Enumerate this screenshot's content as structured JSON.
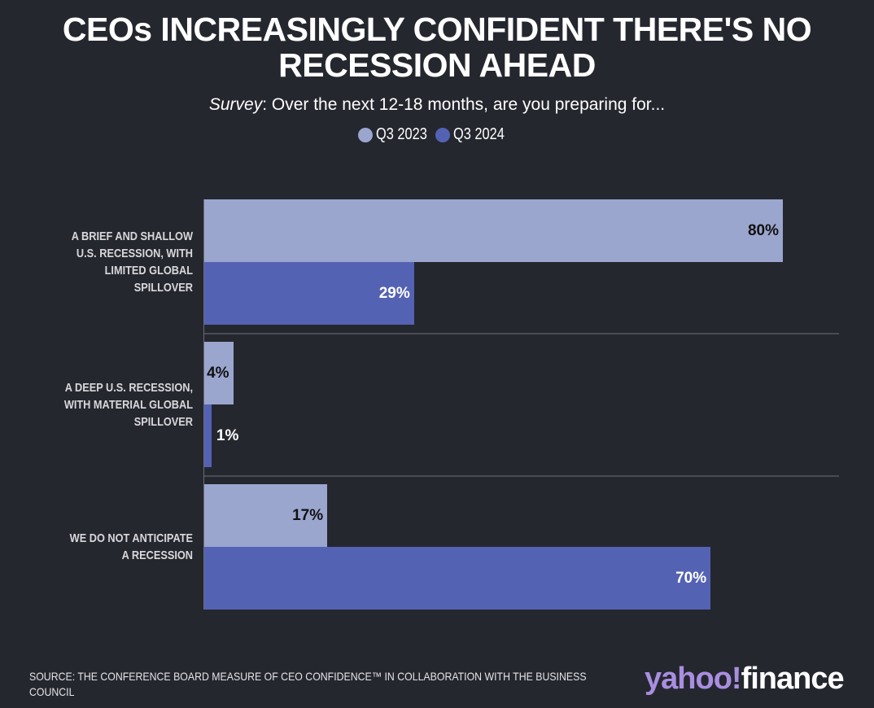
{
  "header": {
    "title_line1": "CEOs INCREASINGLY CONFIDENT THERE'S NO",
    "title_line2": "RECESSION AHEAD",
    "subtitle_italic": "Survey",
    "subtitle_rest": ": Over the next 12-18 months, are you preparing for..."
  },
  "legend": [
    {
      "label": "Q3 2023",
      "color": "#9ba6cf"
    },
    {
      "label": "Q3 2024",
      "color": "#5462b3"
    }
  ],
  "chart_data": {
    "type": "bar",
    "orientation": "horizontal",
    "categories": [
      "A BRIEF AND SHALLOW U.S. RECESSION, WITH LIMITED GLOBAL SPILLOVER",
      "A DEEP U.S. RECESSION, WITH MATERIAL GLOBAL SPILLOVER",
      "WE DO NOT ANTICIPATE A RECESSION"
    ],
    "category_lines": [
      [
        "A BRIEF AND SHALLOW",
        "U.S. RECESSION, WITH",
        "LIMITED GLOBAL",
        "SPILLOVER"
      ],
      [
        "A DEEP U.S. RECESSION,",
        "WITH MATERIAL GLOBAL",
        "SPILLOVER"
      ],
      [
        "WE DO NOT ANTICIPATE",
        "A RECESSION"
      ]
    ],
    "series": [
      {
        "name": "Q3 2023",
        "values": [
          80,
          4,
          17
        ],
        "labels": [
          "80%",
          "4%",
          "17%"
        ]
      },
      {
        "name": "Q3 2024",
        "values": [
          29,
          1,
          70
        ],
        "labels": [
          "29%",
          "1%",
          "70%"
        ]
      }
    ],
    "title": "CEOs INCREASINGLY CONFIDENT THERE'S NO RECESSION AHEAD",
    "xlabel": "",
    "ylabel": "",
    "xlim": [
      0,
      80
    ],
    "legend_position": "top-center",
    "grid": false
  },
  "footer": {
    "source": "SOURCE: THE CONFERENCE BOARD MEASURE OF CEO CONFIDENCE™ IN COLLABORATION WITH THE BUSINESS COUNCIL",
    "logo_text": "yahoo!finance",
    "logo_part1": "yahoo!",
    "logo_part2": "finance"
  }
}
